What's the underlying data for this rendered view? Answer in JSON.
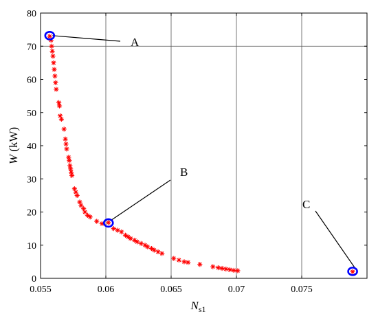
{
  "chart_data": {
    "type": "scatter",
    "xlabel_main": "N",
    "xlabel_sub": "s1",
    "ylabel_main": "W",
    "ylabel_unit": " (kW)",
    "xlim": [
      0.055,
      0.08
    ],
    "ylim": [
      0,
      80
    ],
    "x_ticks": [
      0.055,
      0.06,
      0.065,
      0.07,
      0.075
    ],
    "x_tick_labels": [
      "0.055",
      "0.06",
      "0.065",
      "0.07",
      "0.075"
    ],
    "y_ticks": [
      0,
      10,
      20,
      30,
      40,
      50,
      60,
      70,
      80
    ],
    "y_tick_labels": [
      "0",
      "10",
      "20",
      "30",
      "40",
      "50",
      "60",
      "70",
      "80"
    ],
    "grid": {
      "x_lines": [
        0.06,
        0.065,
        0.07,
        0.075
      ],
      "y_lines": [
        70
      ]
    },
    "marker": "asterisk",
    "marker_color": "#ff0000",
    "highlight_color": "#0000ff",
    "series": [
      {
        "points": [
          [
            0.0557,
            73.0
          ],
          [
            0.0558,
            71.8
          ],
          [
            0.05585,
            70.0
          ],
          [
            0.0559,
            68.5
          ],
          [
            0.05595,
            67.0
          ],
          [
            0.056,
            65.0
          ],
          [
            0.05605,
            63.0
          ],
          [
            0.0561,
            61.0
          ],
          [
            0.05615,
            59.0
          ],
          [
            0.0562,
            57.0
          ],
          [
            0.0564,
            53.0
          ],
          [
            0.05645,
            52.0
          ],
          [
            0.0565,
            49.0
          ],
          [
            0.0566,
            48.0
          ],
          [
            0.0568,
            45.0
          ],
          [
            0.0569,
            42.0
          ],
          [
            0.05695,
            40.5
          ],
          [
            0.057,
            39.0
          ],
          [
            0.05715,
            36.5
          ],
          [
            0.0572,
            35.5
          ],
          [
            0.05725,
            34.0
          ],
          [
            0.0573,
            33.0
          ],
          [
            0.05735,
            32.0
          ],
          [
            0.0574,
            31.0
          ],
          [
            0.0576,
            27.0
          ],
          [
            0.0577,
            26.0
          ],
          [
            0.0578,
            25.0
          ],
          [
            0.058,
            23.0
          ],
          [
            0.0581,
            22.0
          ],
          [
            0.0583,
            21.0
          ],
          [
            0.0584,
            20.0
          ],
          [
            0.0586,
            19.0
          ],
          [
            0.0588,
            18.5
          ],
          [
            0.0593,
            17.2
          ],
          [
            0.0597,
            16.5
          ],
          [
            0.0602,
            16.8
          ],
          [
            0.0606,
            15.0
          ],
          [
            0.0609,
            14.5
          ],
          [
            0.0612,
            14.0
          ],
          [
            0.0615,
            13.0
          ],
          [
            0.0617,
            12.5
          ],
          [
            0.0619,
            12.0
          ],
          [
            0.0622,
            11.5
          ],
          [
            0.0624,
            11.0
          ],
          [
            0.0627,
            10.5
          ],
          [
            0.063,
            10.0
          ],
          [
            0.0632,
            9.5
          ],
          [
            0.0635,
            9.0
          ],
          [
            0.0637,
            8.5
          ],
          [
            0.064,
            8.0
          ],
          [
            0.0643,
            7.5
          ],
          [
            0.0652,
            6.0
          ],
          [
            0.0656,
            5.5
          ],
          [
            0.066,
            5.0
          ],
          [
            0.0663,
            4.8
          ],
          [
            0.0672,
            4.2
          ],
          [
            0.0682,
            3.5
          ],
          [
            0.0686,
            3.2
          ],
          [
            0.0689,
            3.0
          ],
          [
            0.0692,
            2.8
          ],
          [
            0.0695,
            2.6
          ],
          [
            0.0698,
            2.4
          ],
          [
            0.0701,
            2.3
          ],
          [
            0.0789,
            2.0
          ]
        ]
      }
    ],
    "highlighted_points": [
      {
        "label": "A",
        "x": 0.0557,
        "y": 73.2
      },
      {
        "label": "B",
        "x": 0.0602,
        "y": 16.7
      },
      {
        "label": "C",
        "x": 0.0789,
        "y": 2.1
      }
    ]
  }
}
